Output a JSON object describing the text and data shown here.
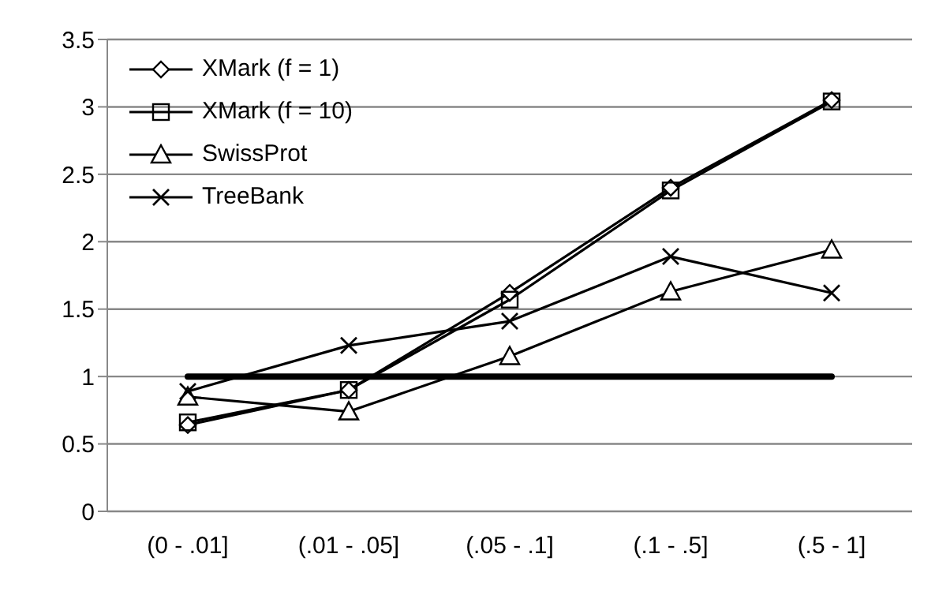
{
  "chart_data": {
    "type": "line",
    "categories": [
      "(0 - .01]",
      "(.01 - .05]",
      "(.05 - .1]",
      "(.1 - .5]",
      "(.5 - 1]"
    ],
    "series": [
      {
        "name": "XMark (f = 1)",
        "color": "#000000",
        "marker": "diamond",
        "values": [
          0.64,
          0.9,
          1.62,
          2.4,
          3.05
        ]
      },
      {
        "name": "XMark (f = 10)",
        "color": "#000000",
        "marker": "square",
        "values": [
          0.66,
          0.9,
          1.57,
          2.38,
          3.04
        ]
      },
      {
        "name": "SwissProt",
        "color": "#000000",
        "marker": "triangle",
        "values": [
          0.85,
          0.74,
          1.15,
          1.63,
          1.94
        ]
      },
      {
        "name": "TreeBank",
        "color": "#000000",
        "marker": "cross",
        "values": [
          0.89,
          1.23,
          1.41,
          1.89,
          1.62
        ]
      },
      {
        "color": "#000000",
        "marker": "none",
        "values": [
          1,
          1,
          1,
          1,
          1
        ]
      }
    ],
    "ylim": [
      0,
      3.5
    ],
    "yticks": [
      0,
      0.5,
      1,
      1.5,
      2,
      2.5,
      3,
      3.5
    ],
    "grid": "y",
    "legend": "top left"
  }
}
